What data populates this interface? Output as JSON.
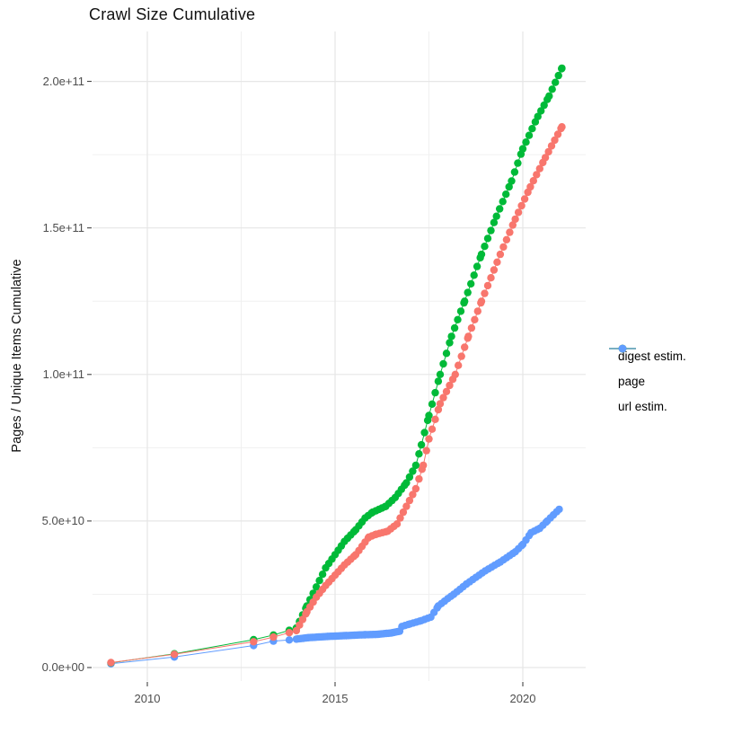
{
  "chart_data": {
    "type": "line",
    "title": "Crawl Size Cumulative",
    "xlabel": "",
    "ylabel": "Pages / Unique Items Cumulative",
    "grid": true,
    "legend_position": "right",
    "x_ticks": [
      {
        "value": 2010,
        "label": "2010"
      },
      {
        "value": 2015,
        "label": "2015"
      },
      {
        "value": 2020,
        "label": "2020"
      }
    ],
    "x_minor_ticks": [
      2012.5,
      2017.5
    ],
    "y_ticks": [
      {
        "value": 0,
        "label": "0.0e+00"
      },
      {
        "value": 50000000000.0,
        "label": "5.0e+10"
      },
      {
        "value": 100000000000.0,
        "label": "1.0e+11"
      },
      {
        "value": 150000000000.0,
        "label": "1.5e+11"
      },
      {
        "value": 200000000000.0,
        "label": "2.0e+11"
      }
    ],
    "y_minor_ticks": [
      25000000000.0,
      75000000000.0,
      125000000000.0,
      175000000000.0
    ],
    "x_range": [
      2008.5,
      2021.7
    ],
    "y_range": [
      -4500000000.0,
      217000000000.0
    ],
    "series": [
      {
        "name": "digest estim.",
        "color": "#F8766D",
        "points": [
          [
            2009.03,
            1700000000.0
          ],
          [
            2010.72,
            4500000000.0
          ],
          [
            2012.83,
            8800000000.0
          ],
          [
            2013.36,
            10400000000.0
          ],
          [
            2013.78,
            11900000000.0
          ],
          [
            2013.97,
            12600000000.0
          ],
          [
            2014.25,
            19000000000.0
          ],
          [
            2014.5,
            24000000000.0
          ],
          [
            2014.75,
            28000000000.0
          ],
          [
            2015.0,
            31500000000.0
          ],
          [
            2015.25,
            35000000000.0
          ],
          [
            2015.55,
            38500000000.0
          ],
          [
            2015.9,
            44500000000.0
          ],
          [
            2016.1,
            45500000000.0
          ],
          [
            2016.4,
            46500000000.0
          ],
          [
            2016.65,
            49000000000.0
          ],
          [
            2016.9,
            55000000000.0
          ],
          [
            2017.15,
            61000000000.0
          ],
          [
            2017.35,
            69000000000.0
          ],
          [
            2017.5,
            78000000000.0
          ],
          [
            2017.8,
            90000000000.0
          ],
          [
            2018.2,
            100000000000.0
          ],
          [
            2018.55,
            113000000000.0
          ],
          [
            2018.9,
            125000000000.0
          ],
          [
            2019.4,
            141000000000.0
          ],
          [
            2019.8,
            153000000000.0
          ],
          [
            2020.2,
            164000000000.0
          ],
          [
            2020.6,
            174000000000.0
          ],
          [
            2021.04,
            184500000000.0
          ]
        ]
      },
      {
        "name": "page",
        "color": "#00BA38",
        "points": [
          [
            2009.03,
            1600000000.0
          ],
          [
            2010.72,
            4700000000.0
          ],
          [
            2012.83,
            9500000000.0
          ],
          [
            2013.36,
            11100000000.0
          ],
          [
            2013.78,
            12700000000.0
          ],
          [
            2013.97,
            13500000000.0
          ],
          [
            2014.25,
            21000000000.0
          ],
          [
            2014.5,
            27500000000.0
          ],
          [
            2014.75,
            34000000000.0
          ],
          [
            2015.0,
            38500000000.0
          ],
          [
            2015.25,
            43000000000.0
          ],
          [
            2015.55,
            47000000000.0
          ],
          [
            2015.8,
            51000000000.0
          ],
          [
            2016.0,
            53000000000.0
          ],
          [
            2016.35,
            55000000000.0
          ],
          [
            2016.6,
            58000000000.0
          ],
          [
            2016.9,
            63000000000.0
          ],
          [
            2017.15,
            69000000000.0
          ],
          [
            2017.3,
            76000000000.0
          ],
          [
            2017.5,
            86000000000.0
          ],
          [
            2017.8,
            100000000000.0
          ],
          [
            2018.1,
            113000000000.0
          ],
          [
            2018.45,
            125000000000.0
          ],
          [
            2018.9,
            141000000000.0
          ],
          [
            2019.3,
            154000000000.0
          ],
          [
            2019.7,
            166000000000.0
          ],
          [
            2020.0,
            177000000000.0
          ],
          [
            2020.4,
            188000000000.0
          ],
          [
            2020.7,
            195000000000.0
          ],
          [
            2021.04,
            204500000000.0
          ]
        ]
      },
      {
        "name": "url estim.",
        "color": "#619CFF",
        "points": [
          [
            2009.03,
            1300000000.0
          ],
          [
            2010.72,
            3600000000.0
          ],
          [
            2012.83,
            7500000000.0
          ],
          [
            2013.36,
            9000000000.0
          ],
          [
            2013.78,
            9400000000.0
          ],
          [
            2013.97,
            9700000000.0
          ],
          [
            2014.3,
            10200000000.0
          ],
          [
            2014.8,
            10600000000.0
          ],
          [
            2015.3,
            10900000000.0
          ],
          [
            2015.8,
            11200000000.0
          ],
          [
            2016.1,
            11300000000.0
          ],
          [
            2016.5,
            11800000000.0
          ],
          [
            2016.72,
            12400000000.0
          ],
          [
            2016.78,
            14000000000.0
          ],
          [
            2017.0,
            14900000000.0
          ],
          [
            2017.3,
            16000000000.0
          ],
          [
            2017.55,
            17200000000.0
          ],
          [
            2017.75,
            21000000000.0
          ],
          [
            2018.0,
            23500000000.0
          ],
          [
            2018.16,
            25000000000.0
          ],
          [
            2018.5,
            28500000000.0
          ],
          [
            2019.0,
            33000000000.0
          ],
          [
            2019.4,
            36000000000.0
          ],
          [
            2019.8,
            39500000000.0
          ],
          [
            2020.0,
            42000000000.0
          ],
          [
            2020.22,
            46000000000.0
          ],
          [
            2020.45,
            47500000000.0
          ],
          [
            2020.65,
            50000000000.0
          ],
          [
            2020.97,
            54000000000.0
          ]
        ]
      }
    ],
    "dense_from_year": 2013.97,
    "sample_step_years": 0.0833,
    "url_band": {
      "from": 2013.97,
      "to": 2016.6,
      "step": 0.045
    }
  },
  "style": {
    "grid_major_color": "#E6E6E6",
    "grid_minor_color": "#F0F0F0",
    "tick_mark_color": "#333333",
    "axis_label_color": "#4d4d4d"
  }
}
